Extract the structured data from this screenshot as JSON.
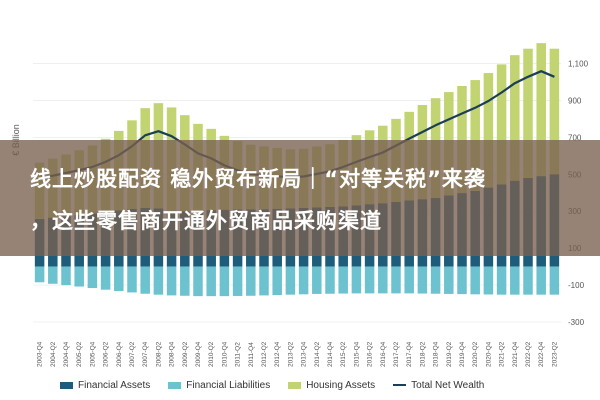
{
  "chart_data": {
    "type": "bar",
    "ylabel": "€ Billion",
    "ylim": [
      -300,
      1200
    ],
    "yticks": [
      -300,
      -100,
      100,
      300,
      500,
      700,
      900,
      1100
    ],
    "ytick_labels": [
      "-300",
      "-100",
      "100",
      "300",
      "500",
      "700",
      "900",
      "1,100"
    ],
    "categories": [
      "2003-Q4",
      "2004-Q2",
      "2004-Q4",
      "2005-Q2",
      "2005-Q4",
      "2006-Q2",
      "2006-Q4",
      "2007-Q2",
      "2007-Q4",
      "2008-Q2",
      "2008-Q4",
      "2009-Q2",
      "2009-Q4",
      "2010-Q2",
      "2010-Q4",
      "2011-Q2",
      "2011-Q4",
      "2012-Q2",
      "2012-Q4",
      "2013-Q2",
      "2013-Q4",
      "2014-Q2",
      "2014-Q4",
      "2015-Q2",
      "2015-Q4",
      "2016-Q2",
      "2016-Q4",
      "2017-Q2",
      "2017-Q4",
      "2018-Q2",
      "2018-Q4",
      "2019-Q2",
      "2019-Q4",
      "2020-Q2",
      "2020-Q4",
      "2021-Q2",
      "2021-Q4",
      "2022-Q2",
      "2022-Q4",
      "2023-Q2"
    ],
    "series": [
      {
        "name": "Financial Assets",
        "color": "#1d5c7a",
        "style": "bar",
        "stack": "positive",
        "values": [
          258,
          265,
          272,
          280,
          288,
          297,
          305,
          312,
          318,
          315,
          302,
          300,
          303,
          306,
          308,
          310,
          310,
          311,
          313,
          315,
          318,
          320,
          323,
          326,
          332,
          338,
          343,
          350,
          358,
          365,
          372,
          385,
          398,
          410,
          428,
          445,
          465,
          480,
          490,
          500
        ]
      },
      {
        "name": "Financial Liabilities",
        "color": "#6cc3cf",
        "style": "bar",
        "stack": "negative",
        "values": [
          -85,
          -93,
          -100,
          -108,
          -116,
          -125,
          -132,
          -140,
          -147,
          -152,
          -156,
          -158,
          -160,
          -160,
          -160,
          -159,
          -158,
          -156,
          -154,
          -152,
          -150,
          -148,
          -147,
          -146,
          -145,
          -145,
          -145,
          -145,
          -145,
          -146,
          -147,
          -148,
          -149,
          -150,
          -151,
          -152,
          -152,
          -152,
          -152,
          -152
        ]
      },
      {
        "name": "Housing Assets",
        "color": "#c2d371",
        "style": "bar",
        "stack": "positive",
        "values": [
          305,
          320,
          335,
          350,
          368,
          395,
          430,
          480,
          540,
          570,
          560,
          520,
          470,
          440,
          400,
          370,
          350,
          340,
          330,
          320,
          320,
          330,
          340,
          360,
          380,
          400,
          420,
          450,
          480,
          510,
          540,
          560,
          580,
          600,
          620,
          650,
          680,
          700,
          720,
          680
        ]
      },
      {
        "name": "Total Net Wealth",
        "color": "#1c3e56",
        "style": "line",
        "values": [
          478,
          492,
          507,
          522,
          540,
          567,
          603,
          652,
          711,
          733,
          706,
          662,
          613,
          586,
          548,
          521,
          502,
          495,
          489,
          483,
          488,
          502,
          516,
          540,
          567,
          593,
          618,
          655,
          693,
          729,
          765,
          797,
          829,
          860,
          897,
          943,
          993,
          1028,
          1058,
          1028
        ]
      }
    ],
    "legend_position": "bottom",
    "grid": false
  },
  "overlay": {
    "line1": "线上炒股配资 稳外贸布新局｜“对等关税”来袭",
    "line2": "，这些零售商开通外贸商品采购渠道"
  }
}
